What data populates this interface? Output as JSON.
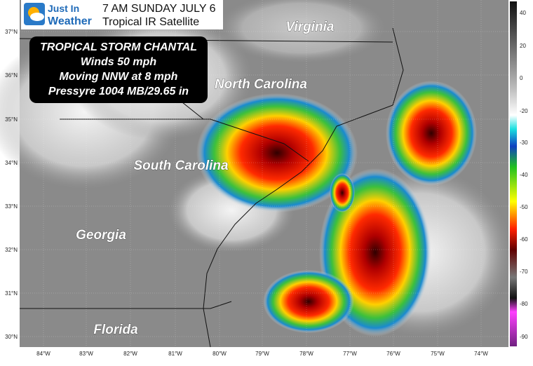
{
  "logo": {
    "line1": "Just In",
    "line2": "Weather"
  },
  "header": {
    "time": "7 AM SUNDAY JULY 6",
    "subtitle": "Tropical IR Satellite"
  },
  "storm_box": {
    "title": "TROPICAL STORM CHANTAL",
    "lines": [
      "Winds 50 mph",
      "Moving NNW at 8 mph",
      "Pressyre 1004 MB/29.65 in"
    ]
  },
  "map": {
    "state_labels": [
      "Virginia",
      "North Carolina",
      "South Carolina",
      "Georgia",
      "Florida"
    ],
    "lat_labels": [
      "37°N",
      "36°N",
      "35°N",
      "34°N",
      "33°N",
      "32°N",
      "31°N",
      "30°N"
    ],
    "lon_labels": [
      "84°W",
      "83°W",
      "82°W",
      "81°W",
      "80°W",
      "79°W",
      "78°W",
      "77°W",
      "76°W",
      "75°W",
      "74°W"
    ],
    "colorbar_labels": [
      "40",
      "20",
      "0",
      "-20",
      "-30",
      "-40",
      "-50",
      "-60",
      "-70",
      "-80",
      "-90"
    ]
  }
}
